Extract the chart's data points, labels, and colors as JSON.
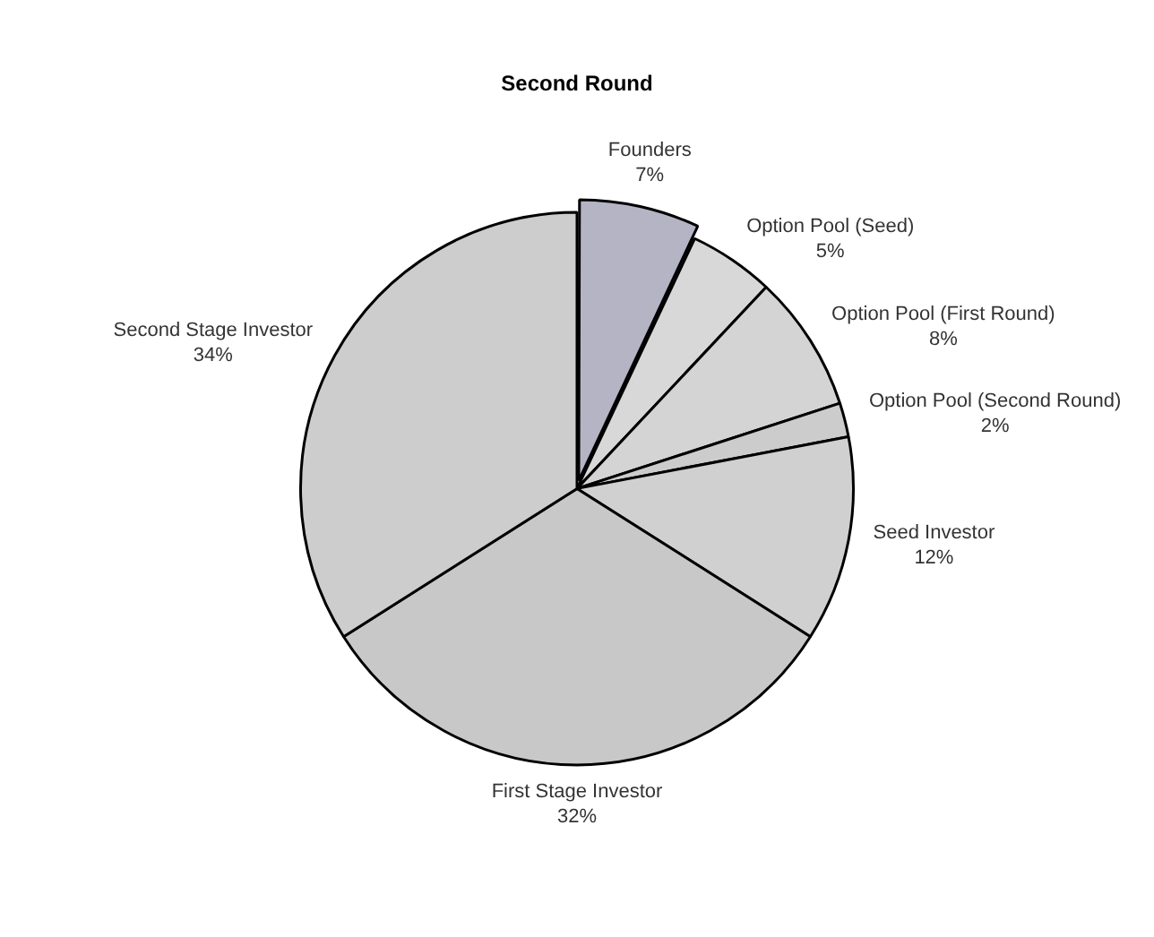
{
  "chart_data": {
    "type": "pie",
    "title": "Second Round",
    "categories": [
      "Founders",
      "Option Pool (Seed)",
      "Option Pool (First Round)",
      "Option Pool (Second Round)",
      "Seed Investor",
      "First Stage Investor",
      "Second Stage Investor"
    ],
    "values": [
      7,
      5,
      8,
      2,
      12,
      32,
      34
    ],
    "value_labels": [
      "7%",
      "5%",
      "8%",
      "2%",
      "12%",
      "32%",
      "34%"
    ],
    "colors": [
      "#b4b4c4",
      "#d8d8d8",
      "#d4d4d4",
      "#cccccc",
      "#d0d0d0",
      "#c8c8c8",
      "#cdcdcd"
    ],
    "legend": false
  }
}
